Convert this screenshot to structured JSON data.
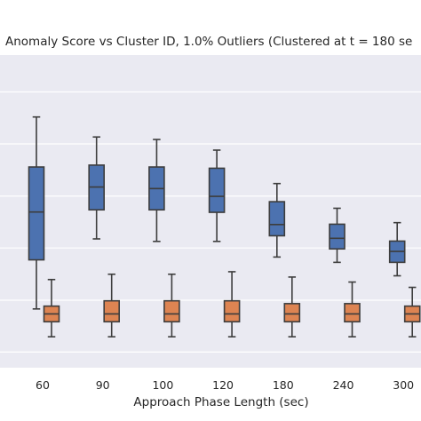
{
  "chart_data": {
    "type": "box",
    "title": "Anomaly Score vs Cluster ID, 1.0% Outliers (Clustered at t = 180 se",
    "xlabel": "Approach Phase Length (sec)",
    "ylabel": "",
    "categories": [
      "60",
      "90",
      "100",
      "120",
      "180",
      "240",
      "300"
    ],
    "ylim": [
      0,
      1
    ],
    "grid": true,
    "colors": {
      "background": "#eaeaf2",
      "grid": "#ffffff",
      "series_blue": "#4c72b0",
      "series_orange": "#dd8452",
      "edge": "#3d3d3d"
    },
    "series": [
      {
        "color": "#4c72b0",
        "boxes": [
          {
            "category": "60",
            "whisker_low": 0.188,
            "q1": 0.345,
            "median": 0.498,
            "q3": 0.642,
            "whisker_high": 0.802
          },
          {
            "category": "90",
            "whisker_low": 0.412,
            "q1": 0.505,
            "median": 0.578,
            "q3": 0.648,
            "whisker_high": 0.738
          },
          {
            "category": "100",
            "whisker_low": 0.404,
            "q1": 0.505,
            "median": 0.573,
            "q3": 0.642,
            "whisker_high": 0.73
          },
          {
            "category": "120",
            "whisker_low": 0.404,
            "q1": 0.497,
            "median": 0.548,
            "q3": 0.638,
            "whisker_high": 0.696
          },
          {
            "category": "180",
            "whisker_low": 0.354,
            "q1": 0.422,
            "median": 0.458,
            "q3": 0.531,
            "whisker_high": 0.589
          },
          {
            "category": "240",
            "whisker_low": 0.337,
            "q1": 0.38,
            "median": 0.414,
            "q3": 0.459,
            "whisker_high": 0.51
          },
          {
            "category": "300",
            "whisker_low": 0.294,
            "q1": 0.337,
            "median": 0.372,
            "q3": 0.405,
            "whisker_high": 0.464
          }
        ]
      },
      {
        "color": "#dd8452",
        "boxes": [
          {
            "category": "60",
            "whisker_low": 0.099,
            "q1": 0.147,
            "median": 0.172,
            "q3": 0.197,
            "whisker_high": 0.282
          },
          {
            "category": "90",
            "whisker_low": 0.099,
            "q1": 0.147,
            "median": 0.172,
            "q3": 0.214,
            "whisker_high": 0.299
          },
          {
            "category": "100",
            "whisker_low": 0.099,
            "q1": 0.147,
            "median": 0.172,
            "q3": 0.214,
            "whisker_high": 0.299
          },
          {
            "category": "120",
            "whisker_low": 0.099,
            "q1": 0.147,
            "median": 0.172,
            "q3": 0.214,
            "whisker_high": 0.307
          },
          {
            "category": "180",
            "whisker_low": 0.099,
            "q1": 0.147,
            "median": 0.172,
            "q3": 0.205,
            "whisker_high": 0.29
          },
          {
            "category": "240",
            "whisker_low": 0.099,
            "q1": 0.147,
            "median": 0.172,
            "q3": 0.205,
            "whisker_high": 0.274
          },
          {
            "category": "300",
            "whisker_low": 0.099,
            "q1": 0.147,
            "median": 0.172,
            "q3": 0.197,
            "whisker_high": 0.257
          }
        ]
      }
    ]
  }
}
